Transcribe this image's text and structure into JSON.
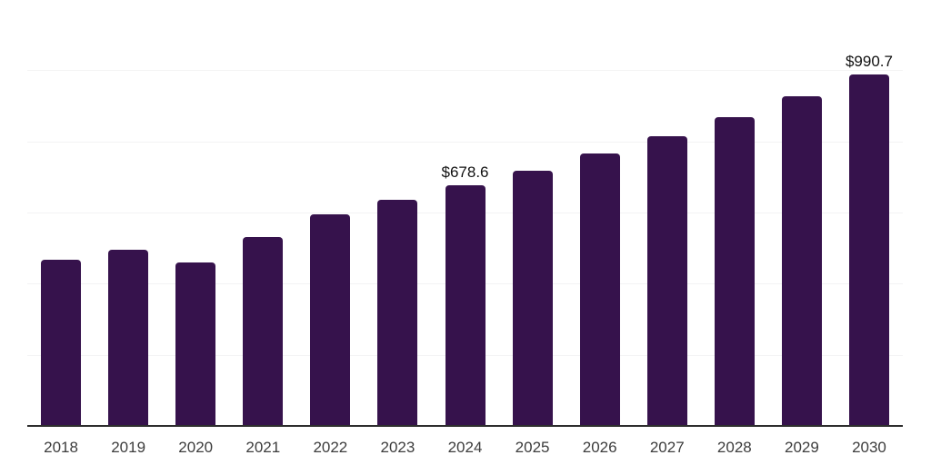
{
  "chart_data": {
    "type": "bar",
    "categories": [
      "2018",
      "2019",
      "2020",
      "2021",
      "2022",
      "2023",
      "2024",
      "2025",
      "2026",
      "2027",
      "2028",
      "2029",
      "2030"
    ],
    "values": [
      470,
      499,
      461,
      533,
      597,
      639,
      678.6,
      721,
      768,
      818,
      871,
      929,
      990.7
    ],
    "value_labels": {
      "2024": "$678.6",
      "2030": "$990.7"
    },
    "title": "",
    "xlabel": "",
    "ylabel": "",
    "ylim": [
      0,
      1200
    ],
    "gridline_step": 200,
    "grid": true,
    "legend": "none",
    "colors": {
      "bar": "#36124c",
      "axis": "#2e2e2e",
      "gridline": "#f3f3f4",
      "tick_label": "#3d3d3d",
      "value_label": "#111111"
    }
  }
}
